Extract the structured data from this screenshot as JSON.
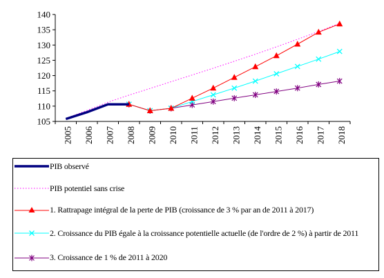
{
  "chart_data": {
    "type": "line",
    "x": [
      "2005",
      "2006",
      "2007",
      "2008",
      "2009",
      "2010",
      "2011",
      "2012",
      "2013",
      "2014",
      "2015",
      "2016",
      "2017",
      "2018"
    ],
    "ylim": [
      105,
      140
    ],
    "yticks": [
      105,
      110,
      115,
      120,
      125,
      130,
      135,
      140
    ],
    "grid": false,
    "legend_position": "bottom",
    "series": [
      {
        "name": "PIB observé",
        "color": "#000080",
        "style": "solid-thick",
        "marker": "none",
        "values": [
          105.8,
          108.0,
          110.6,
          110.6,
          null,
          null,
          null,
          null,
          null,
          null,
          null,
          null,
          null,
          null
        ]
      },
      {
        "name": "PIB potentiel sans crise",
        "color": "#ff00ff",
        "style": "dotted",
        "marker": "none",
        "values": [
          106.0,
          108.6,
          111.3,
          113.6,
          115.8,
          118.0,
          120.2,
          122.4,
          124.7,
          127.0,
          129.4,
          131.9,
          134.4,
          137.1
        ]
      },
      {
        "name": "1. Rattrapage intégral de la perte de PIB (croissance de 3 % par an de 2011 à 2017)",
        "color": "#ff0000",
        "style": "solid",
        "marker": "triangle",
        "values": [
          null,
          null,
          null,
          110.6,
          108.5,
          109.3,
          112.6,
          115.9,
          119.4,
          122.9,
          126.5,
          130.3,
          134.2,
          136.9
        ]
      },
      {
        "name": "2. Croissance du PIB égale à la croissance potentielle actuelle (de l'ordre de 2 %) à partir de 2011",
        "color": "#00ffff",
        "style": "solid",
        "marker": "x",
        "values": [
          null,
          null,
          null,
          110.6,
          108.5,
          109.3,
          111.5,
          113.7,
          115.9,
          118.2,
          120.6,
          123.0,
          125.4,
          127.9
        ]
      },
      {
        "name": "3. Croissance de 1 % de 2011 à 2020",
        "color": "#800080",
        "style": "solid",
        "marker": "star",
        "values": [
          null,
          null,
          null,
          110.6,
          108.5,
          109.3,
          110.4,
          111.5,
          112.6,
          113.7,
          114.8,
          115.9,
          117.1,
          118.2
        ]
      }
    ]
  }
}
